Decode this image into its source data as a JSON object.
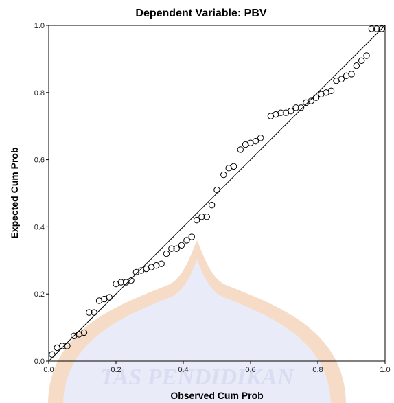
{
  "colors": {
    "background": "#ffffff",
    "axes": "#000000",
    "marker_stroke": "#000000",
    "watermark_fill": "#e9ebf8",
    "watermark_rim": "#f6dcc6",
    "watermark_text": "#d9ddf2"
  },
  "watermark": {
    "text": "TAS PENDIDIKAN"
  },
  "chart_data": {
    "type": "scatter",
    "title": "Dependent Variable: PBV",
    "xlabel": "Observed Cum Prob",
    "ylabel": "Expected Cum Prob",
    "xlim": [
      0.0,
      1.0
    ],
    "ylim": [
      0.0,
      1.0
    ],
    "xticks": [
      "0.0",
      "0.2",
      "0.4",
      "0.6",
      "0.8",
      "1.0"
    ],
    "yticks": [
      "0.0",
      "0.2",
      "0.4",
      "0.6",
      "0.8",
      "1.0"
    ],
    "grid": false,
    "reference_line": [
      [
        0.0,
        0.0
      ],
      [
        1.0,
        1.0
      ]
    ],
    "marker": "open-circle",
    "points": [
      [
        0.01,
        0.02
      ],
      [
        0.025,
        0.04
      ],
      [
        0.04,
        0.045
      ],
      [
        0.055,
        0.045
      ],
      [
        0.075,
        0.075
      ],
      [
        0.09,
        0.08
      ],
      [
        0.105,
        0.085
      ],
      [
        0.12,
        0.145
      ],
      [
        0.135,
        0.145
      ],
      [
        0.15,
        0.18
      ],
      [
        0.165,
        0.185
      ],
      [
        0.18,
        0.19
      ],
      [
        0.2,
        0.23
      ],
      [
        0.215,
        0.235
      ],
      [
        0.23,
        0.235
      ],
      [
        0.245,
        0.24
      ],
      [
        0.26,
        0.265
      ],
      [
        0.275,
        0.27
      ],
      [
        0.29,
        0.275
      ],
      [
        0.305,
        0.28
      ],
      [
        0.32,
        0.285
      ],
      [
        0.335,
        0.29
      ],
      [
        0.35,
        0.32
      ],
      [
        0.365,
        0.335
      ],
      [
        0.38,
        0.335
      ],
      [
        0.395,
        0.345
      ],
      [
        0.41,
        0.36
      ],
      [
        0.425,
        0.37
      ],
      [
        0.44,
        0.42
      ],
      [
        0.455,
        0.43
      ],
      [
        0.47,
        0.43
      ],
      [
        0.485,
        0.465
      ],
      [
        0.5,
        0.51
      ],
      [
        0.52,
        0.555
      ],
      [
        0.535,
        0.575
      ],
      [
        0.55,
        0.58
      ],
      [
        0.57,
        0.63
      ],
      [
        0.585,
        0.645
      ],
      [
        0.6,
        0.65
      ],
      [
        0.615,
        0.655
      ],
      [
        0.63,
        0.665
      ],
      [
        0.66,
        0.73
      ],
      [
        0.675,
        0.735
      ],
      [
        0.69,
        0.74
      ],
      [
        0.705,
        0.74
      ],
      [
        0.72,
        0.745
      ],
      [
        0.735,
        0.755
      ],
      [
        0.75,
        0.755
      ],
      [
        0.765,
        0.77
      ],
      [
        0.78,
        0.775
      ],
      [
        0.795,
        0.785
      ],
      [
        0.81,
        0.795
      ],
      [
        0.825,
        0.8
      ],
      [
        0.84,
        0.805
      ],
      [
        0.855,
        0.835
      ],
      [
        0.87,
        0.84
      ],
      [
        0.885,
        0.85
      ],
      [
        0.9,
        0.855
      ],
      [
        0.915,
        0.88
      ],
      [
        0.93,
        0.895
      ],
      [
        0.945,
        0.91
      ],
      [
        0.96,
        0.99
      ],
      [
        0.975,
        0.99
      ],
      [
        0.99,
        0.99
      ]
    ]
  }
}
